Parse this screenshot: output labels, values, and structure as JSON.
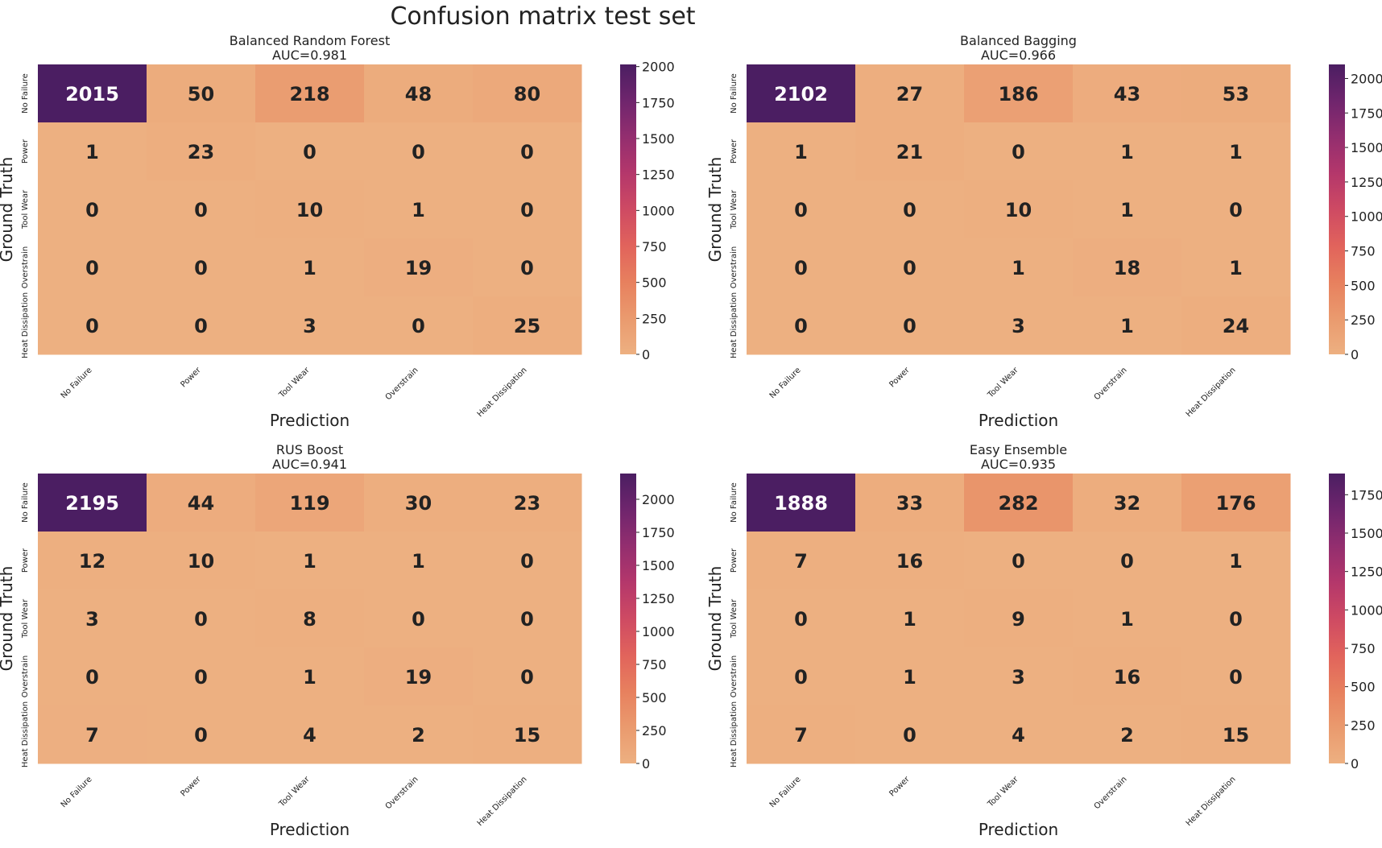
{
  "figure": {
    "title": "Confusion matrix test set"
  },
  "chart_data": [
    {
      "type": "heatmap",
      "title": "Balanced Random Forest",
      "subtitle": "AUC=0.981",
      "xlabel": "Prediction",
      "ylabel": "Ground Truth",
      "x_categories": [
        "No Failure",
        "Power",
        "Tool Wear",
        "Overstrain",
        "Heat Dissipation"
      ],
      "y_categories": [
        "No Failure",
        "Power",
        "Tool Wear",
        "Overstrain",
        "Heat Dissipation"
      ],
      "values": [
        [
          2015,
          50,
          218,
          48,
          80
        ],
        [
          1,
          23,
          0,
          0,
          0
        ],
        [
          0,
          0,
          10,
          1,
          0
        ],
        [
          0,
          0,
          1,
          19,
          0
        ],
        [
          0,
          0,
          3,
          0,
          25
        ]
      ],
      "colorbar": {
        "min": 0,
        "max": 2015,
        "ticks": [
          0,
          250,
          500,
          750,
          1000,
          1250,
          1500,
          1750,
          2000
        ]
      },
      "colormap": "flare"
    },
    {
      "type": "heatmap",
      "title": "Balanced Bagging",
      "subtitle": "AUC=0.966",
      "xlabel": "Prediction",
      "ylabel": "Ground Truth",
      "x_categories": [
        "No Failure",
        "Power",
        "Tool Wear",
        "Overstrain",
        "Heat Dissipation"
      ],
      "y_categories": [
        "No Failure",
        "Power",
        "Tool Wear",
        "Overstrain",
        "Heat Dissipation"
      ],
      "values": [
        [
          2102,
          27,
          186,
          43,
          53
        ],
        [
          1,
          21,
          0,
          1,
          1
        ],
        [
          0,
          0,
          10,
          1,
          0
        ],
        [
          0,
          0,
          1,
          18,
          1
        ],
        [
          0,
          0,
          3,
          1,
          24
        ]
      ],
      "colorbar": {
        "min": 0,
        "max": 2102,
        "ticks": [
          0,
          250,
          500,
          750,
          1000,
          1250,
          1500,
          1750,
          2000
        ]
      },
      "colormap": "flare"
    },
    {
      "type": "heatmap",
      "title": "RUS Boost",
      "subtitle": "AUC=0.941",
      "xlabel": "Prediction",
      "ylabel": "Ground Truth",
      "x_categories": [
        "No Failure",
        "Power",
        "Tool Wear",
        "Overstrain",
        "Heat Dissipation"
      ],
      "y_categories": [
        "No Failure",
        "Power",
        "Tool Wear",
        "Overstrain",
        "Heat Dissipation"
      ],
      "values": [
        [
          2195,
          44,
          119,
          30,
          23
        ],
        [
          12,
          10,
          1,
          1,
          0
        ],
        [
          3,
          0,
          8,
          0,
          0
        ],
        [
          0,
          0,
          1,
          19,
          0
        ],
        [
          7,
          0,
          4,
          2,
          15
        ]
      ],
      "colorbar": {
        "min": 0,
        "max": 2195,
        "ticks": [
          0,
          250,
          500,
          750,
          1000,
          1250,
          1500,
          1750,
          2000
        ]
      },
      "colormap": "flare"
    },
    {
      "type": "heatmap",
      "title": "Easy Ensemble",
      "subtitle": "AUC=0.935",
      "xlabel": "Prediction",
      "ylabel": "Ground Truth",
      "x_categories": [
        "No Failure",
        "Power",
        "Tool Wear",
        "Overstrain",
        "Heat Dissipation"
      ],
      "y_categories": [
        "No Failure",
        "Power",
        "Tool Wear",
        "Overstrain",
        "Heat Dissipation"
      ],
      "values": [
        [
          1888,
          33,
          282,
          32,
          176
        ],
        [
          7,
          16,
          0,
          0,
          1
        ],
        [
          0,
          1,
          9,
          1,
          0
        ],
        [
          0,
          1,
          3,
          16,
          0
        ],
        [
          7,
          0,
          4,
          2,
          15
        ]
      ],
      "colorbar": {
        "min": 0,
        "max": 1888,
        "ticks": [
          0,
          250,
          500,
          750,
          1000,
          1250,
          1500,
          1750
        ]
      },
      "colormap": "flare"
    }
  ]
}
